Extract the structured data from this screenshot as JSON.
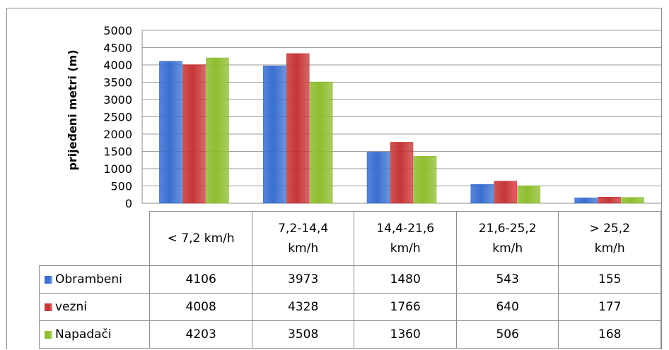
{
  "chart_data": {
    "type": "bar",
    "ylabel": "prijeđeni metri (m)",
    "ylim": [
      0,
      5000
    ],
    "yticks": [
      0,
      500,
      1000,
      1500,
      2000,
      2500,
      3000,
      3500,
      4000,
      4500,
      5000
    ],
    "grid": true,
    "categories": [
      "< 7,2 km/h",
      "7,2-14,4 km/h",
      "14,4-21,6 km/h",
      "21,6-25,2 km/h",
      "> 25,2 km/h"
    ],
    "category_lines": [
      [
        "< 7,2 km/h"
      ],
      [
        "7,2-14,4",
        "km/h"
      ],
      [
        "14,4-21,6",
        "km/h"
      ],
      [
        "21,6-25,2",
        "km/h"
      ],
      [
        "> 25,2",
        "km/h"
      ]
    ],
    "series": [
      {
        "name": "Obrambeni",
        "color": "#3a6fd0",
        "values": [
          4106,
          3973,
          1480,
          543,
          155
        ]
      },
      {
        "name": "vezni",
        "color": "#c73636",
        "values": [
          4008,
          4328,
          1766,
          640,
          177
        ]
      },
      {
        "name": "Napadači",
        "color": "#8fbd2f",
        "values": [
          4203,
          3508,
          1360,
          506,
          168
        ]
      }
    ],
    "legend": "data-table"
  }
}
